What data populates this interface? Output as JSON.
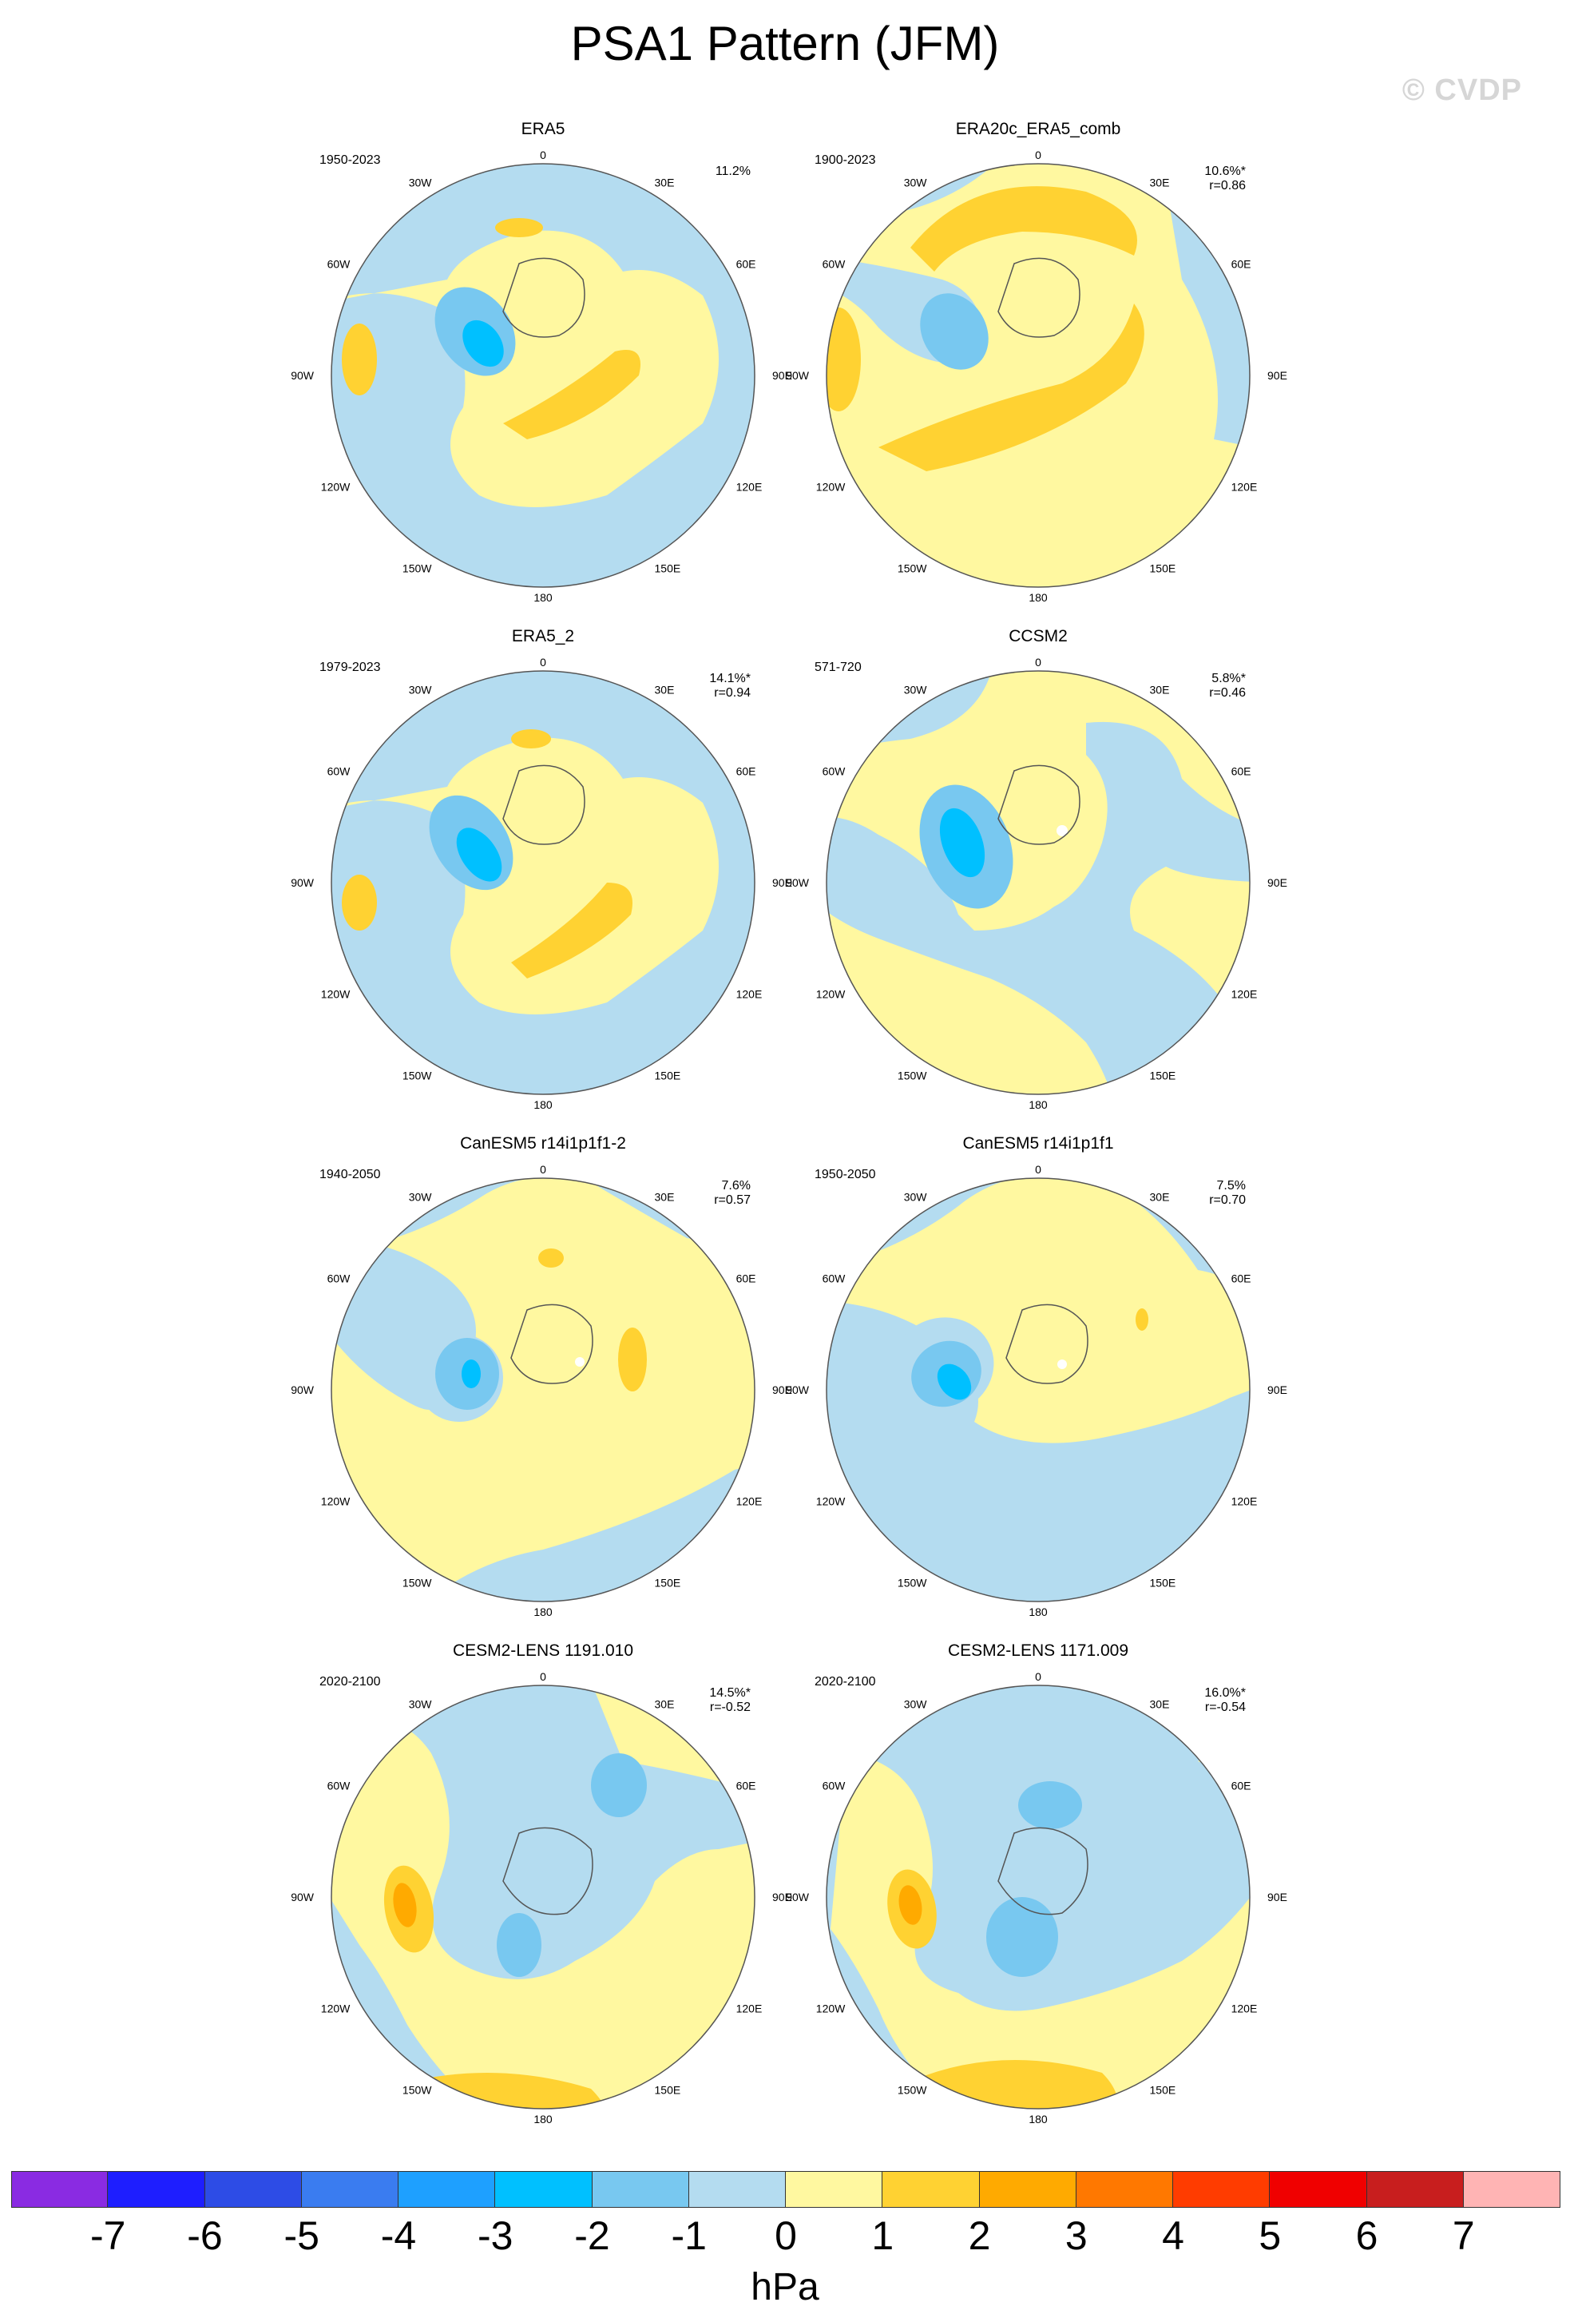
{
  "title": "PSA1 Pattern (JFM)",
  "watermark": "© CVDP",
  "colors": {
    "neg7": "#8a2be2",
    "neg6": "#1e1eff",
    "neg5": "#2d4ce6",
    "neg4": "#3a7cf0",
    "neg3": "#1ea0ff",
    "neg2": "#00c0ff",
    "neg1": "#78c8f0",
    "neg0": "#b4dcf0",
    "pos0": "#fff8a0",
    "pos1": "#ffd232",
    "pos2": "#ffaa00",
    "pos3": "#ff7800",
    "pos4": "#ff3c00",
    "pos5": "#f00000",
    "pos6": "#c81e1e",
    "pos7": "#ffb4b4"
  },
  "lon_labels": [
    "0",
    "30E",
    "60E",
    "90E",
    "120E",
    "150E",
    "180",
    "150W",
    "120W",
    "90W",
    "60W",
    "30W"
  ],
  "panels": [
    {
      "name": "ERA5",
      "period": "1950-2023",
      "pct": "11.2%",
      "r": ""
    },
    {
      "name": "ERA20c_ERA5_comb",
      "period": "1900-2023",
      "pct": "10.6%*",
      "r": "r=0.86"
    },
    {
      "name": "ERA5_2",
      "period": "1979-2023",
      "pct": "14.1%*",
      "r": "r=0.94"
    },
    {
      "name": "CCSM2",
      "period": "571-720",
      "pct": "5.8%*",
      "r": "r=0.46"
    },
    {
      "name": "CanESM5 r14i1p1f1-2",
      "period": "1940-2050",
      "pct": "7.6%",
      "r": "r=0.57"
    },
    {
      "name": "CanESM5 r14i1p1f1",
      "period": "1950-2050",
      "pct": "7.5%",
      "r": "r=0.70"
    },
    {
      "name": "CESM2-LENS 1191.010",
      "period": "2020-2100",
      "pct": "14.5%*",
      "r": "r=-0.52"
    },
    {
      "name": "CESM2-LENS 1171.009",
      "period": "2020-2100",
      "pct": "16.0%*",
      "r": "r=-0.54"
    }
  ],
  "colorbar": {
    "colors": [
      "#8a2be2",
      "#1e1eff",
      "#2d4ce6",
      "#3a7cf0",
      "#1ea0ff",
      "#00c0ff",
      "#78c8f0",
      "#b4dcf0",
      "#fff8a0",
      "#ffd232",
      "#ffaa00",
      "#ff7800",
      "#ff3c00",
      "#f00000",
      "#c81e1e",
      "#ffb4b4"
    ],
    "ticks": [
      "-7",
      "-6",
      "-5",
      "-4",
      "-3",
      "-2",
      "-1",
      "0",
      "1",
      "2",
      "3",
      "4",
      "5",
      "6",
      "7"
    ],
    "units": "hPa"
  }
}
